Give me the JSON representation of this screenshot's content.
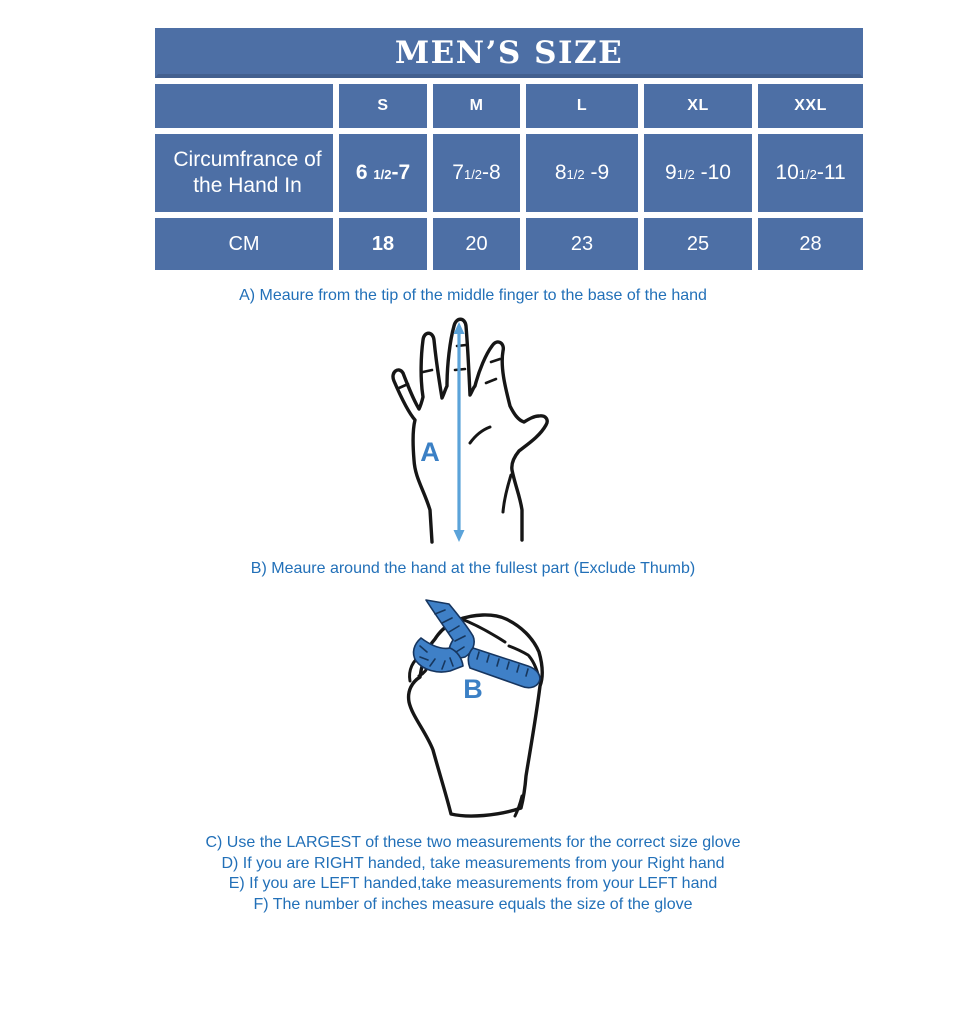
{
  "colors": {
    "table_blue": "#4d6fa5",
    "selected_cell_border": "#1e3c6b",
    "title_underline": "#43608f",
    "instruction_text_blue": "#2270b8",
    "diagram_label_blue": "#3b80c5",
    "arrow_blue": "#5ba3d9",
    "tape_blue": "#3f80c7",
    "outline_black": "#161616"
  },
  "size_table": {
    "title": "MEN’S SIZE",
    "columns": [
      "",
      "S",
      "M",
      "L",
      "XL",
      "XXL"
    ],
    "selected_column": "S",
    "rows": [
      {
        "label": "Circumfrance of the Hand In",
        "values": [
          "6 1/2-7",
          "71/2-8",
          "81/2 -9",
          "91/2 -10",
          "101/2-11"
        ]
      },
      {
        "label": "CM",
        "values": [
          "18",
          "20",
          "23",
          "25",
          "28"
        ]
      }
    ]
  },
  "instructions": {
    "a": "A) Meaure from the tip of the middle finger to the base of the hand",
    "b": "B) Meaure around the hand at the fullest part (Exclude Thumb)",
    "c": "C) Use the LARGEST of these two measurements for the correct size glove",
    "d": "D) If you are RIGHT handed, take measurements from your Right hand",
    "e": "E) If you are LEFT handed,take measurements from your LEFT hand",
    "f": "F) The number of inches measure equals the size of the glove"
  },
  "diagram_a": {
    "label": "A"
  },
  "diagram_b": {
    "label": "B"
  }
}
